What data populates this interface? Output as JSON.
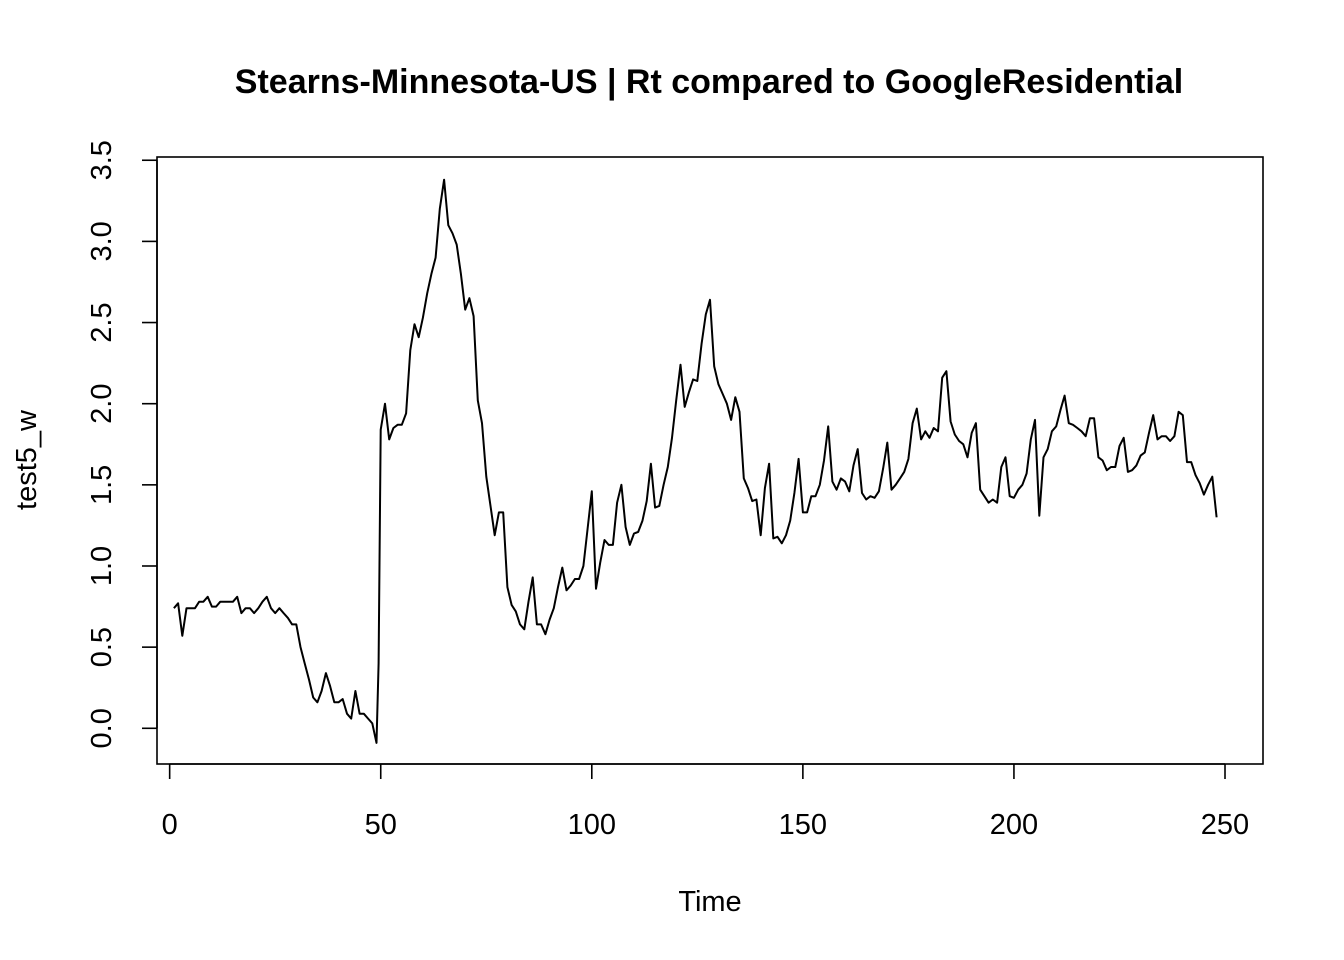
{
  "chart_data": {
    "type": "line",
    "title": "Stearns-Minnesota-US | Rt compared to GoogleResidential",
    "xlabel": "Time",
    "ylabel": "test5_w",
    "xlim": [
      -3,
      259
    ],
    "ylim": [
      -0.22,
      3.52
    ],
    "x_ticks": [
      0,
      50,
      100,
      150,
      200,
      250
    ],
    "y_ticks": [
      0.0,
      0.5,
      1.0,
      1.5,
      2.0,
      2.5,
      3.0,
      3.5
    ],
    "x_tick_labels": [
      "0",
      "50",
      "100",
      "150",
      "200",
      "250"
    ],
    "y_tick_labels": [
      "0.0",
      "0.5",
      "1.0",
      "1.5",
      "2.0",
      "2.5",
      "3.0",
      "3.5"
    ],
    "grid": false,
    "series": [
      {
        "color": "#000000",
        "points": [
          [
            1,
            0.74
          ],
          [
            2,
            0.77
          ],
          [
            3,
            0.57
          ],
          [
            4,
            0.74
          ],
          [
            5,
            0.74
          ],
          [
            6,
            0.74
          ],
          [
            7,
            0.78
          ],
          [
            8,
            0.78
          ],
          [
            9,
            0.81
          ],
          [
            10,
            0.75
          ],
          [
            11,
            0.75
          ],
          [
            12,
            0.78
          ],
          [
            13,
            0.78
          ],
          [
            14,
            0.78
          ],
          [
            15,
            0.78
          ],
          [
            16,
            0.81
          ],
          [
            17,
            0.71
          ],
          [
            18,
            0.74
          ],
          [
            19,
            0.74
          ],
          [
            20,
            0.71
          ],
          [
            21,
            0.74
          ],
          [
            22,
            0.78
          ],
          [
            23,
            0.81
          ],
          [
            24,
            0.74
          ],
          [
            25,
            0.71
          ],
          [
            26,
            0.74
          ],
          [
            27,
            0.71
          ],
          [
            28,
            0.68
          ],
          [
            29,
            0.64
          ],
          [
            30,
            0.64
          ],
          [
            31,
            0.5
          ],
          [
            32,
            0.4
          ],
          [
            33,
            0.3
          ],
          [
            34,
            0.19
          ],
          [
            35,
            0.16
          ],
          [
            36,
            0.23
          ],
          [
            37,
            0.34
          ],
          [
            38,
            0.26
          ],
          [
            39,
            0.16
          ],
          [
            40,
            0.16
          ],
          [
            41,
            0.18
          ],
          [
            42,
            0.09
          ],
          [
            43,
            0.06
          ],
          [
            44,
            0.23
          ],
          [
            45,
            0.09
          ],
          [
            46,
            0.09
          ],
          [
            47,
            0.06
          ],
          [
            48,
            0.03
          ],
          [
            49,
            -0.09
          ],
          [
            49.5,
            0.4
          ],
          [
            50,
            1.84
          ],
          [
            51,
            2.0
          ],
          [
            52,
            1.78
          ],
          [
            53,
            1.85
          ],
          [
            54,
            1.87
          ],
          [
            55,
            1.87
          ],
          [
            56,
            1.94
          ],
          [
            57,
            2.33
          ],
          [
            58,
            2.49
          ],
          [
            59,
            2.41
          ],
          [
            60,
            2.53
          ],
          [
            61,
            2.68
          ],
          [
            62,
            2.8
          ],
          [
            63,
            2.9
          ],
          [
            64,
            3.2
          ],
          [
            65,
            3.38
          ],
          [
            66,
            3.1
          ],
          [
            67,
            3.05
          ],
          [
            68,
            2.98
          ],
          [
            69,
            2.8
          ],
          [
            70,
            2.58
          ],
          [
            71,
            2.65
          ],
          [
            72,
            2.54
          ],
          [
            73,
            2.02
          ],
          [
            74,
            1.88
          ],
          [
            75,
            1.55
          ],
          [
            76,
            1.37
          ],
          [
            77,
            1.19
          ],
          [
            78,
            1.33
          ],
          [
            79,
            1.33
          ],
          [
            80,
            0.87
          ],
          [
            81,
            0.76
          ],
          [
            82,
            0.72
          ],
          [
            83,
            0.64
          ],
          [
            84,
            0.61
          ],
          [
            85,
            0.78
          ],
          [
            86,
            0.93
          ],
          [
            87,
            0.64
          ],
          [
            88,
            0.64
          ],
          [
            89,
            0.58
          ],
          [
            90,
            0.67
          ],
          [
            91,
            0.74
          ],
          [
            92,
            0.87
          ],
          [
            93,
            0.99
          ],
          [
            94,
            0.85
          ],
          [
            95,
            0.88
          ],
          [
            96,
            0.92
          ],
          [
            97,
            0.92
          ],
          [
            98,
            1.0
          ],
          [
            99,
            1.23
          ],
          [
            100,
            1.46
          ],
          [
            101,
            0.86
          ],
          [
            102,
            1.02
          ],
          [
            103,
            1.16
          ],
          [
            104,
            1.13
          ],
          [
            105,
            1.13
          ],
          [
            106,
            1.39
          ],
          [
            107,
            1.5
          ],
          [
            108,
            1.24
          ],
          [
            109,
            1.13
          ],
          [
            110,
            1.2
          ],
          [
            111,
            1.21
          ],
          [
            112,
            1.28
          ],
          [
            113,
            1.4
          ],
          [
            114,
            1.63
          ],
          [
            115,
            1.36
          ],
          [
            116,
            1.37
          ],
          [
            117,
            1.5
          ],
          [
            118,
            1.61
          ],
          [
            119,
            1.79
          ],
          [
            120,
            2.02
          ],
          [
            121,
            2.24
          ],
          [
            122,
            1.98
          ],
          [
            123,
            2.07
          ],
          [
            124,
            2.15
          ],
          [
            125,
            2.14
          ],
          [
            126,
            2.37
          ],
          [
            127,
            2.55
          ],
          [
            128,
            2.64
          ],
          [
            129,
            2.23
          ],
          [
            130,
            2.12
          ],
          [
            131,
            2.06
          ],
          [
            132,
            2.0
          ],
          [
            133,
            1.9
          ],
          [
            134,
            2.04
          ],
          [
            135,
            1.95
          ],
          [
            136,
            1.54
          ],
          [
            137,
            1.48
          ],
          [
            138,
            1.4
          ],
          [
            139,
            1.41
          ],
          [
            140,
            1.19
          ],
          [
            141,
            1.48
          ],
          [
            142,
            1.63
          ],
          [
            143,
            1.17
          ],
          [
            144,
            1.18
          ],
          [
            145,
            1.14
          ],
          [
            146,
            1.19
          ],
          [
            147,
            1.28
          ],
          [
            148,
            1.45
          ],
          [
            149,
            1.66
          ],
          [
            150,
            1.33
          ],
          [
            151,
            1.33
          ],
          [
            152,
            1.43
          ],
          [
            153,
            1.43
          ],
          [
            154,
            1.5
          ],
          [
            155,
            1.65
          ],
          [
            156,
            1.86
          ],
          [
            157,
            1.52
          ],
          [
            158,
            1.47
          ],
          [
            159,
            1.54
          ],
          [
            160,
            1.52
          ],
          [
            161,
            1.46
          ],
          [
            162,
            1.62
          ],
          [
            163,
            1.72
          ],
          [
            164,
            1.45
          ],
          [
            165,
            1.41
          ],
          [
            166,
            1.43
          ],
          [
            167,
            1.42
          ],
          [
            168,
            1.46
          ],
          [
            169,
            1.6
          ],
          [
            170,
            1.76
          ],
          [
            171,
            1.47
          ],
          [
            172,
            1.5
          ],
          [
            173,
            1.54
          ],
          [
            174,
            1.58
          ],
          [
            175,
            1.66
          ],
          [
            176,
            1.88
          ],
          [
            177,
            1.97
          ],
          [
            178,
            1.78
          ],
          [
            179,
            1.83
          ],
          [
            180,
            1.79
          ],
          [
            181,
            1.85
          ],
          [
            182,
            1.83
          ],
          [
            183,
            2.16
          ],
          [
            184,
            2.2
          ],
          [
            185,
            1.89
          ],
          [
            186,
            1.81
          ],
          [
            187,
            1.77
          ],
          [
            188,
            1.75
          ],
          [
            189,
            1.67
          ],
          [
            190,
            1.82
          ],
          [
            191,
            1.88
          ],
          [
            192,
            1.47
          ],
          [
            193,
            1.43
          ],
          [
            194,
            1.39
          ],
          [
            195,
            1.41
          ],
          [
            196,
            1.39
          ],
          [
            197,
            1.61
          ],
          [
            198,
            1.67
          ],
          [
            199,
            1.43
          ],
          [
            200,
            1.42
          ],
          [
            201,
            1.47
          ],
          [
            202,
            1.5
          ],
          [
            203,
            1.57
          ],
          [
            204,
            1.78
          ],
          [
            205,
            1.9
          ],
          [
            206,
            1.31
          ],
          [
            207,
            1.67
          ],
          [
            208,
            1.72
          ],
          [
            209,
            1.83
          ],
          [
            210,
            1.86
          ],
          [
            211,
            1.96
          ],
          [
            212,
            2.05
          ],
          [
            213,
            1.88
          ],
          [
            214,
            1.87
          ],
          [
            215,
            1.85
          ],
          [
            216,
            1.83
          ],
          [
            217,
            1.8
          ],
          [
            218,
            1.91
          ],
          [
            219,
            1.91
          ],
          [
            220,
            1.67
          ],
          [
            221,
            1.65
          ],
          [
            222,
            1.59
          ],
          [
            223,
            1.61
          ],
          [
            224,
            1.61
          ],
          [
            225,
            1.74
          ],
          [
            226,
            1.79
          ],
          [
            227,
            1.58
          ],
          [
            228,
            1.59
          ],
          [
            229,
            1.62
          ],
          [
            230,
            1.68
          ],
          [
            231,
            1.7
          ],
          [
            232,
            1.82
          ],
          [
            233,
            1.93
          ],
          [
            234,
            1.78
          ],
          [
            235,
            1.8
          ],
          [
            236,
            1.8
          ],
          [
            237,
            1.77
          ],
          [
            238,
            1.8
          ],
          [
            239,
            1.95
          ],
          [
            240,
            1.93
          ],
          [
            241,
            1.64
          ],
          [
            242,
            1.64
          ],
          [
            243,
            1.56
          ],
          [
            244,
            1.51
          ],
          [
            245,
            1.44
          ],
          [
            246,
            1.5
          ],
          [
            247,
            1.55
          ],
          [
            248,
            1.3
          ]
        ]
      }
    ]
  }
}
